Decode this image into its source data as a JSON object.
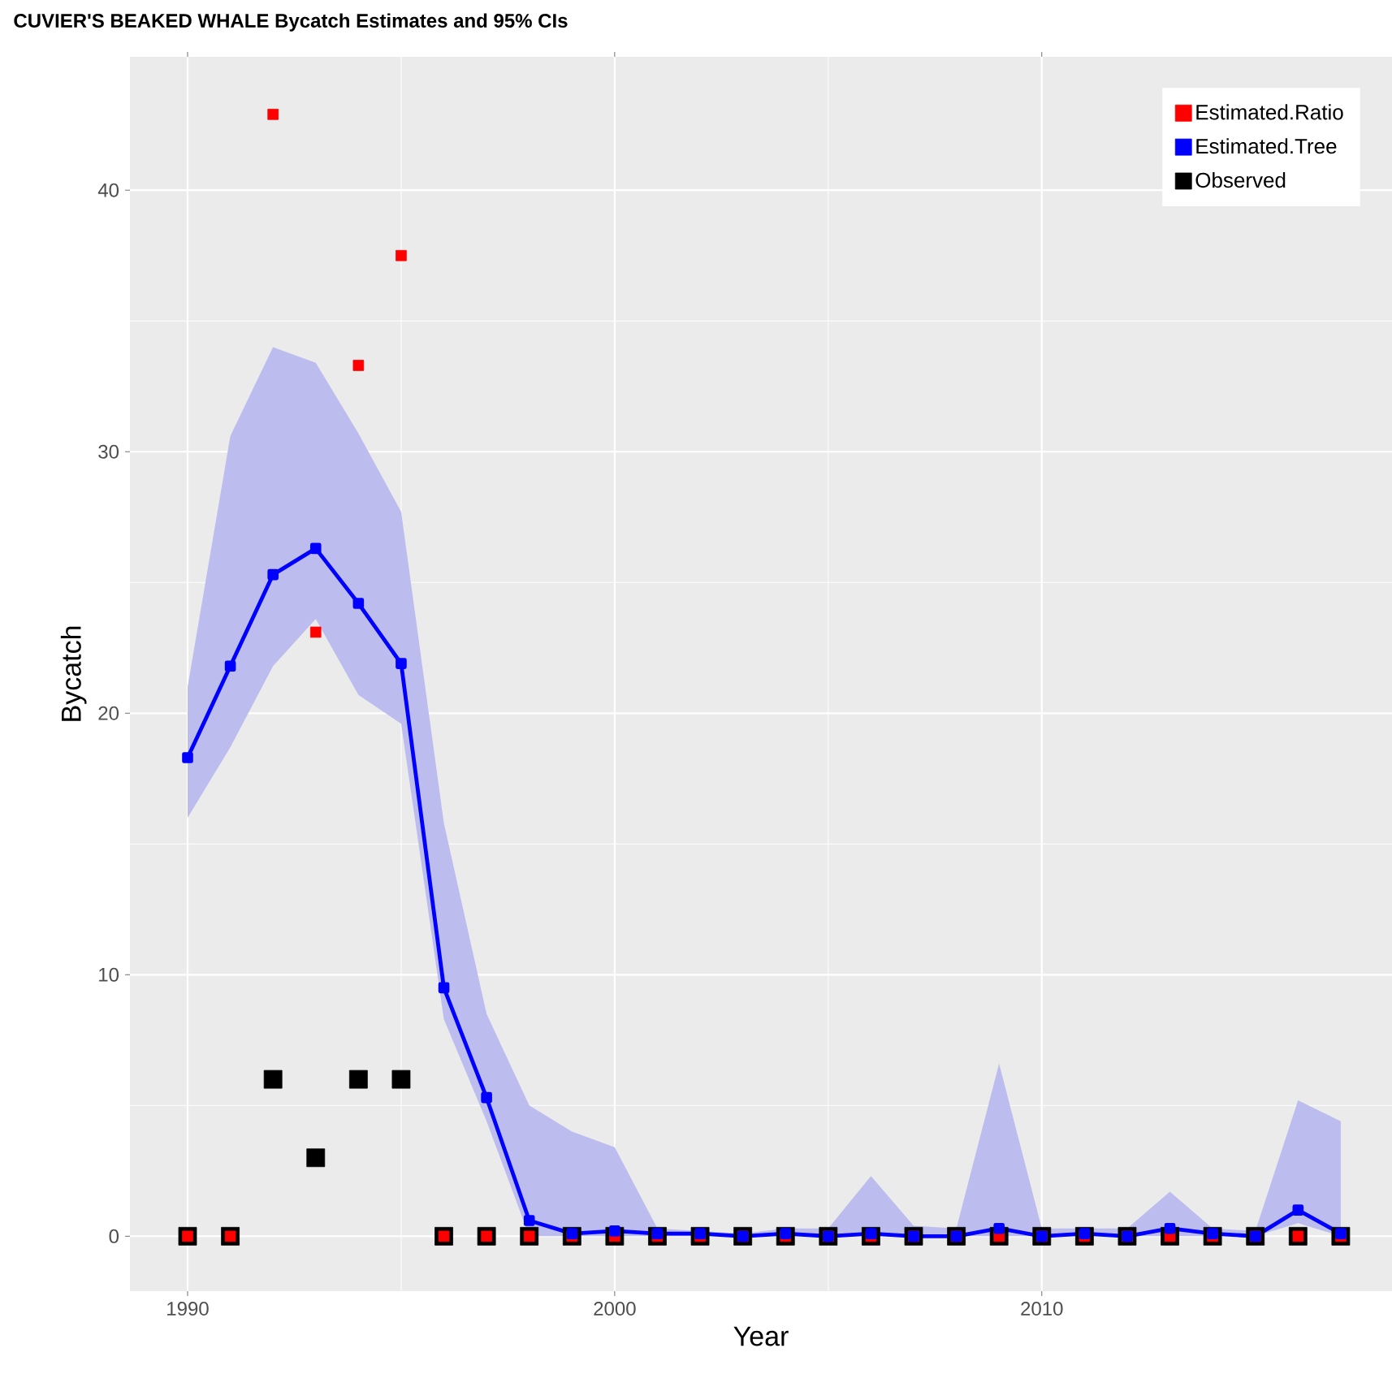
{
  "chart_data": {
    "type": "scatter",
    "title": "CUVIER'S BEAKED WHALE Bycatch Estimates and 95% CIs",
    "xlabel": "Year",
    "ylabel": "Bycatch",
    "x": [
      1990,
      1991,
      1992,
      1993,
      1994,
      1995,
      1996,
      1997,
      1998,
      1999,
      2000,
      2001,
      2002,
      2003,
      2004,
      2005,
      2006,
      2007,
      2008,
      2009,
      2010,
      2011,
      2012,
      2013,
      2014,
      2015,
      2016,
      2017
    ],
    "series": [
      {
        "name": "Estimated.Ratio",
        "color": "#ff0000",
        "values": [
          0,
          0,
          42.9,
          23.1,
          33.3,
          37.5,
          0,
          0,
          0,
          0,
          0,
          0,
          0,
          0,
          0,
          0,
          0,
          0,
          0,
          0,
          0,
          0,
          0,
          0,
          0,
          0,
          0,
          0
        ]
      },
      {
        "name": "Estimated.Tree",
        "type": "line",
        "color": "#0000ff",
        "values": [
          18.3,
          21.8,
          25.3,
          26.3,
          24.2,
          21.9,
          9.5,
          5.3,
          0.6,
          0.1,
          0.2,
          0.1,
          0.1,
          0,
          0.1,
          0,
          0.1,
          0,
          0,
          0.3,
          0,
          0.1,
          0,
          0.3,
          0.1,
          0,
          1.0,
          0.1
        ],
        "upper": [
          21.0,
          30.6,
          34.0,
          33.4,
          30.7,
          27.7,
          15.8,
          8.5,
          5.0,
          4.0,
          3.4,
          0.3,
          0.2,
          0.1,
          0.3,
          0.3,
          2.3,
          0.4,
          0.3,
          6.6,
          0.3,
          0.3,
          0.3,
          1.7,
          0.3,
          0.2,
          5.2,
          4.4
        ],
        "lower": [
          16.0,
          18.7,
          21.8,
          23.6,
          20.7,
          19.6,
          8.3,
          4.4,
          0,
          0,
          0,
          0,
          0,
          0,
          0,
          0,
          0,
          0,
          0,
          0,
          0,
          0,
          0,
          0,
          0,
          0,
          0.5,
          0
        ]
      },
      {
        "name": "Observed",
        "color": "#000000",
        "values": [
          0,
          0,
          6,
          3,
          6,
          6,
          0,
          0,
          0,
          0,
          0,
          0,
          0,
          0,
          0,
          0,
          0,
          0,
          0,
          0,
          0,
          0,
          0,
          0,
          0,
          0,
          0,
          0
        ]
      }
    ],
    "xlim": [
      1988.65,
      2018.2
    ],
    "ylim": [
      -2.1,
      45.1
    ],
    "xticks": [
      1990,
      2000,
      2010
    ],
    "yticks": [
      0,
      10,
      20,
      30,
      40
    ],
    "grid": true,
    "legend": "top right",
    "marker": "square"
  }
}
